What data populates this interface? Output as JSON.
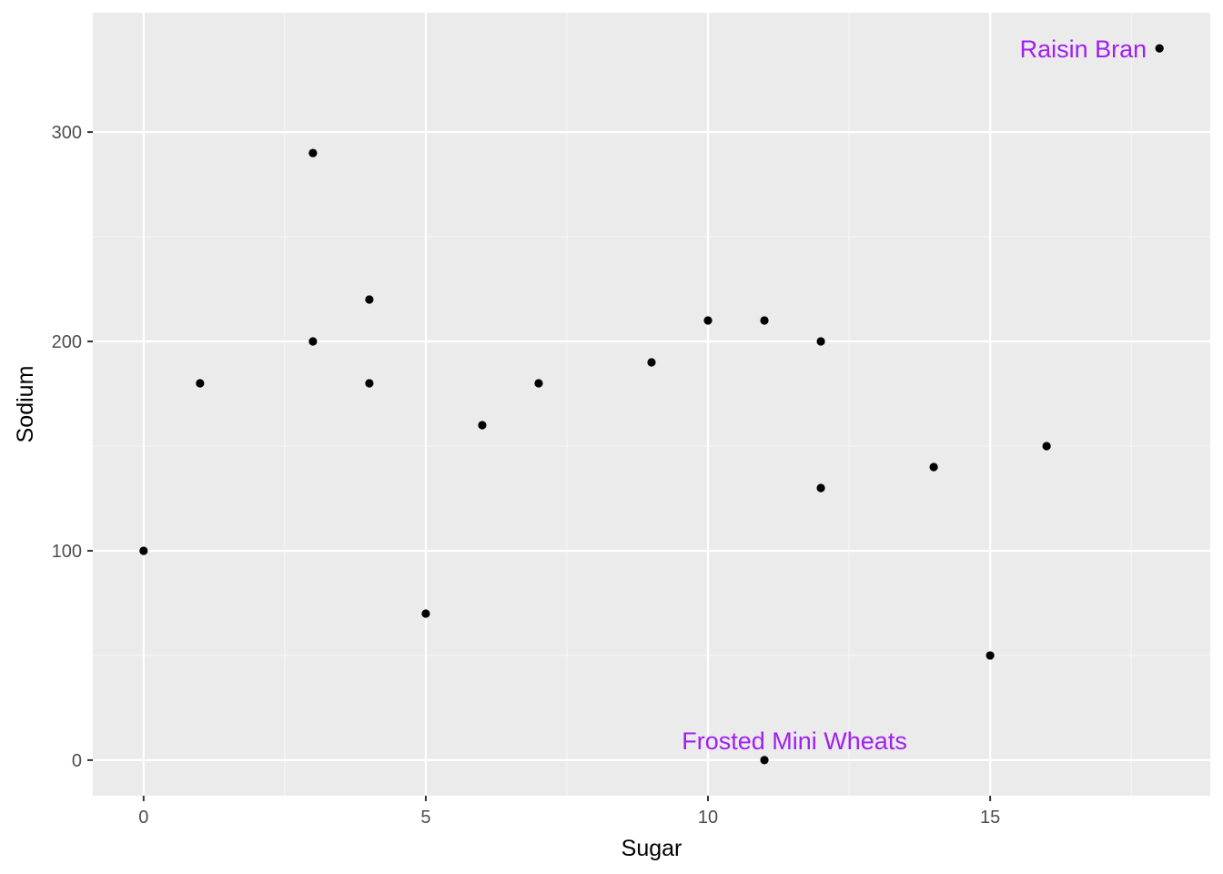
{
  "chart_data": {
    "type": "scatter",
    "title": "",
    "xlabel": "Sugar",
    "ylabel": "Sodium",
    "xlim": [
      -0.9,
      18.9
    ],
    "ylim": [
      -17,
      357
    ],
    "x_ticks": [
      0,
      5,
      10,
      15
    ],
    "x_tick_labels": [
      "0",
      "5",
      "10",
      "15"
    ],
    "y_ticks": [
      0,
      100,
      200,
      300
    ],
    "y_tick_labels": [
      "0",
      "100",
      "200",
      "300"
    ],
    "x_minor_ticks": [
      2.5,
      7.5,
      12.5,
      17.5
    ],
    "y_minor_ticks": [
      50,
      150,
      250
    ],
    "grid": true,
    "points": [
      {
        "x": 0,
        "y": 100
      },
      {
        "x": 1,
        "y": 180
      },
      {
        "x": 3,
        "y": 290
      },
      {
        "x": 3,
        "y": 200
      },
      {
        "x": 4,
        "y": 220
      },
      {
        "x": 4,
        "y": 180
      },
      {
        "x": 5,
        "y": 70
      },
      {
        "x": 6,
        "y": 160
      },
      {
        "x": 7,
        "y": 180
      },
      {
        "x": 9,
        "y": 190
      },
      {
        "x": 10,
        "y": 210
      },
      {
        "x": 11,
        "y": 210
      },
      {
        "x": 11,
        "y": 0
      },
      {
        "x": 12,
        "y": 200
      },
      {
        "x": 12,
        "y": 130
      },
      {
        "x": 14,
        "y": 140
      },
      {
        "x": 15,
        "y": 50
      },
      {
        "x": 16,
        "y": 150
      },
      {
        "x": 18,
        "y": 340
      }
    ],
    "annotations": [
      {
        "text": "Raisin Bran",
        "x": 18,
        "y": 340,
        "anchor": "end"
      },
      {
        "text": "Frosted Mini Wheats",
        "x": 11,
        "y": 0,
        "anchor": "middle-above"
      }
    ],
    "colors": {
      "panel": "#ebebeb",
      "grid_major": "#ffffff",
      "grid_minor": "#f5f5f5",
      "point": "#000000",
      "annotation": "#a020f0"
    }
  }
}
